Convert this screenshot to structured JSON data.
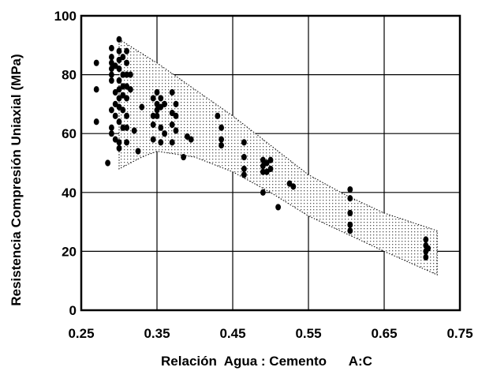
{
  "chart_data": {
    "type": "scatter",
    "title": "",
    "xlabel": "Relación  Agua : Cemento      A:C",
    "ylabel": "Resistencia Compresión Uniaxial (MPa)",
    "xlim": [
      0.25,
      0.75
    ],
    "ylim": [
      0,
      100
    ],
    "x_ticks": [
      0.25,
      0.35,
      0.45,
      0.55,
      0.65,
      0.75
    ],
    "x_tick_labels": [
      "0.25",
      "0.35",
      "0.45",
      "0.55",
      "0.65",
      "0.75"
    ],
    "y_ticks": [
      0,
      20,
      40,
      60,
      80,
      100
    ],
    "y_tick_labels": [
      "0",
      "20",
      "40",
      "60",
      "80",
      "100"
    ],
    "grid": true,
    "band": {
      "description": "dotted envelope",
      "upper": [
        [
          0.3,
          92
        ],
        [
          0.35,
          84
        ],
        [
          0.4,
          75
        ],
        [
          0.45,
          66
        ],
        [
          0.5,
          56
        ],
        [
          0.55,
          46
        ],
        [
          0.6,
          39
        ],
        [
          0.65,
          33
        ],
        [
          0.72,
          27
        ]
      ],
      "lower": [
        [
          0.3,
          48
        ],
        [
          0.33,
          52
        ],
        [
          0.35,
          54
        ],
        [
          0.4,
          52
        ],
        [
          0.45,
          47
        ],
        [
          0.5,
          40
        ],
        [
          0.55,
          32
        ],
        [
          0.6,
          26
        ],
        [
          0.65,
          20
        ],
        [
          0.72,
          12
        ]
      ]
    },
    "points": [
      [
        0.27,
        84
      ],
      [
        0.27,
        75
      ],
      [
        0.27,
        64
      ],
      [
        0.285,
        50
      ],
      [
        0.29,
        89
      ],
      [
        0.29,
        86
      ],
      [
        0.29,
        84
      ],
      [
        0.29,
        82
      ],
      [
        0.29,
        80
      ],
      [
        0.29,
        78
      ],
      [
        0.29,
        68
      ],
      [
        0.29,
        62
      ],
      [
        0.29,
        60
      ],
      [
        0.295,
        83
      ],
      [
        0.295,
        74
      ],
      [
        0.295,
        70
      ],
      [
        0.295,
        66
      ],
      [
        0.295,
        58
      ],
      [
        0.3,
        92
      ],
      [
        0.3,
        88
      ],
      [
        0.3,
        85
      ],
      [
        0.3,
        82
      ],
      [
        0.3,
        78
      ],
      [
        0.3,
        75
      ],
      [
        0.3,
        72
      ],
      [
        0.3,
        69
      ],
      [
        0.3,
        64
      ],
      [
        0.3,
        57
      ],
      [
        0.3,
        55
      ],
      [
        0.305,
        86
      ],
      [
        0.305,
        80
      ],
      [
        0.305,
        76
      ],
      [
        0.305,
        73
      ],
      [
        0.305,
        68
      ],
      [
        0.305,
        62
      ],
      [
        0.31,
        88
      ],
      [
        0.31,
        84
      ],
      [
        0.31,
        80
      ],
      [
        0.31,
        76
      ],
      [
        0.31,
        72
      ],
      [
        0.31,
        66
      ],
      [
        0.31,
        62
      ],
      [
        0.31,
        57
      ],
      [
        0.315,
        80
      ],
      [
        0.315,
        75
      ],
      [
        0.32,
        61
      ],
      [
        0.325,
        54
      ],
      [
        0.33,
        69
      ],
      [
        0.345,
        72
      ],
      [
        0.345,
        66
      ],
      [
        0.345,
        63
      ],
      [
        0.345,
        58
      ],
      [
        0.35,
        74
      ],
      [
        0.35,
        70
      ],
      [
        0.35,
        68
      ],
      [
        0.35,
        66
      ],
      [
        0.355,
        72
      ],
      [
        0.355,
        69
      ],
      [
        0.355,
        62
      ],
      [
        0.355,
        57
      ],
      [
        0.36,
        70
      ],
      [
        0.36,
        60
      ],
      [
        0.37,
        74
      ],
      [
        0.37,
        67
      ],
      [
        0.37,
        63
      ],
      [
        0.37,
        57
      ],
      [
        0.375,
        70
      ],
      [
        0.375,
        66
      ],
      [
        0.375,
        61
      ],
      [
        0.385,
        52
      ],
      [
        0.39,
        59
      ],
      [
        0.395,
        58
      ],
      [
        0.43,
        66
      ],
      [
        0.435,
        62
      ],
      [
        0.435,
        58
      ],
      [
        0.435,
        56
      ],
      [
        0.465,
        57
      ],
      [
        0.465,
        52
      ],
      [
        0.465,
        48
      ],
      [
        0.465,
        46
      ],
      [
        0.49,
        51
      ],
      [
        0.49,
        49
      ],
      [
        0.49,
        47
      ],
      [
        0.49,
        40
      ],
      [
        0.495,
        50
      ],
      [
        0.495,
        47
      ],
      [
        0.5,
        51
      ],
      [
        0.5,
        48
      ],
      [
        0.51,
        35
      ],
      [
        0.525,
        43
      ],
      [
        0.53,
        42
      ],
      [
        0.605,
        41
      ],
      [
        0.605,
        38
      ],
      [
        0.605,
        33
      ],
      [
        0.605,
        29
      ],
      [
        0.605,
        27
      ],
      [
        0.705,
        24
      ],
      [
        0.705,
        22
      ],
      [
        0.705,
        20
      ],
      [
        0.705,
        18
      ],
      [
        0.708,
        21
      ]
    ]
  }
}
